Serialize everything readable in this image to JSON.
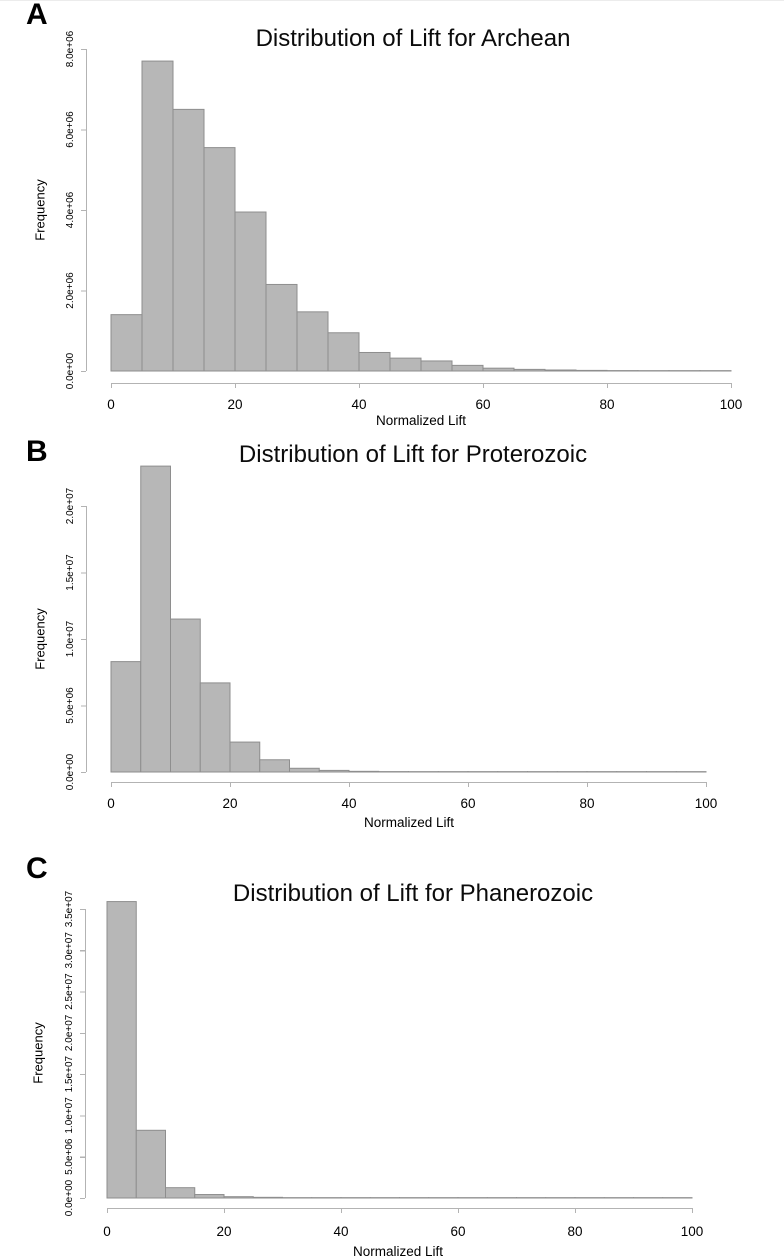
{
  "page": {
    "background": "#ffffff"
  },
  "style": {
    "bar_fill": "#b7b7b7",
    "bar_stroke": "#8e8e8e",
    "axis_color": "#b3b3b3",
    "text_color": "#000000"
  },
  "chart_data": [
    {
      "type": "bar",
      "panel_label": "A",
      "title": "Distribution of Lift for Archean",
      "xlabel": "Normalized Lift",
      "ylabel": "Frequency",
      "xlim": [
        0,
        100
      ],
      "ylim": [
        0,
        8000000
      ],
      "grid": false,
      "legend": null,
      "bin_width": 5,
      "bin_edges": [
        0,
        5,
        10,
        15,
        20,
        25,
        30,
        35,
        40,
        45,
        50,
        55,
        60,
        65,
        70,
        75,
        80,
        85,
        90,
        95,
        100
      ],
      "values": [
        1400000,
        7700000,
        6500000,
        5550000,
        3950000,
        2150000,
        1470000,
        950000,
        460000,
        320000,
        250000,
        140000,
        70000,
        40000,
        25000,
        15000,
        10000,
        6000,
        4000,
        2000
      ],
      "x_ticks": [
        0,
        20,
        40,
        60,
        80,
        100
      ],
      "x_tick_labels": [
        "0",
        "20",
        "40",
        "60",
        "80",
        "100"
      ],
      "y_ticks": [
        0,
        2000000,
        4000000,
        6000000,
        8000000
      ],
      "y_tick_labels": [
        "0.0e+00",
        "2.0e+06",
        "4.0e+06",
        "6.0e+06",
        "8.0e+06"
      ]
    },
    {
      "type": "bar",
      "panel_label": "B",
      "title": "Distribution of Lift for Proterozoic",
      "xlabel": "Normalized Lift",
      "ylabel": "Frequency",
      "xlim": [
        0,
        100
      ],
      "ylim": [
        0,
        23000000
      ],
      "grid": false,
      "legend": null,
      "bin_width": 5,
      "bin_edges": [
        0,
        5,
        10,
        15,
        20,
        25,
        30,
        35,
        40,
        45,
        50,
        55,
        60,
        65,
        70,
        75,
        80,
        85,
        90,
        95,
        100
      ],
      "values": [
        8300000,
        23000000,
        11500000,
        6700000,
        2250000,
        920000,
        280000,
        120000,
        50000,
        30000,
        18000,
        10000,
        6000,
        4000,
        3000,
        2000,
        1500,
        1000,
        800,
        500
      ],
      "x_ticks": [
        0,
        20,
        40,
        60,
        80,
        100
      ],
      "x_tick_labels": [
        "0",
        "20",
        "40",
        "60",
        "80",
        "100"
      ],
      "y_ticks": [
        0,
        5000000,
        10000000,
        15000000,
        20000000
      ],
      "y_tick_labels": [
        "0.0e+00",
        "5.0e+06",
        "1.0e+07",
        "1.5e+07",
        "2.0e+07"
      ]
    },
    {
      "type": "bar",
      "panel_label": "C",
      "title": "Distribution of Lift for Phanerozoic",
      "xlabel": "Normalized Lift",
      "ylabel": "Frequency",
      "xlim": [
        0,
        100
      ],
      "ylim": [
        0,
        36000000
      ],
      "grid": false,
      "legend": null,
      "bin_width": 5,
      "bin_edges": [
        0,
        5,
        10,
        15,
        20,
        25,
        30,
        35,
        40,
        45,
        50,
        55,
        60,
        65,
        70,
        75,
        80,
        85,
        90,
        95,
        100
      ],
      "values": [
        35900000,
        8200000,
        1250000,
        420000,
        160000,
        80000,
        35000,
        18000,
        10000,
        6000,
        4000,
        3000,
        2000,
        1500,
        1000,
        800,
        600,
        500,
        400,
        300
      ],
      "x_ticks": [
        0,
        20,
        40,
        60,
        80,
        100
      ],
      "x_tick_labels": [
        "0",
        "20",
        "40",
        "60",
        "80",
        "100"
      ],
      "y_ticks": [
        0,
        5000000,
        10000000,
        15000000,
        20000000,
        25000000,
        30000000,
        35000000
      ],
      "y_tick_labels": [
        "0.0e+00",
        "5.0e+06",
        "1.0e+07",
        "1.5e+07",
        "2.0e+07",
        "2.5e+07",
        "3.0e+07",
        "3.5e+07"
      ]
    }
  ]
}
